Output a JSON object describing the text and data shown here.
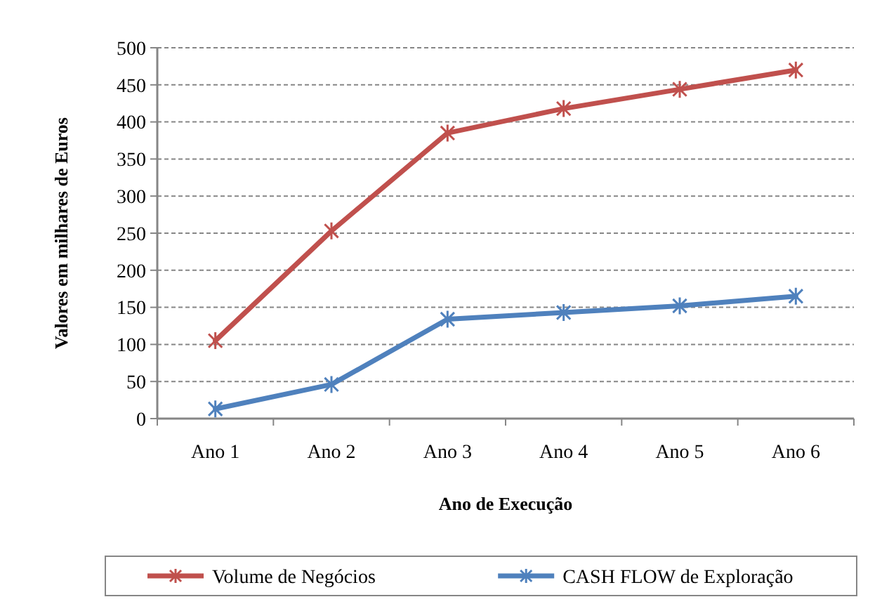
{
  "chart_data": {
    "type": "line",
    "xlabel": "Ano de Execução",
    "ylabel": "Valores em milhares de Euros",
    "categories": [
      "Ano 1",
      "Ano 2",
      "Ano 3",
      "Ano 4",
      "Ano 5",
      "Ano 6"
    ],
    "series": [
      {
        "name": "Volume de Negócios",
        "color": "#c0504d",
        "values": [
          105,
          253,
          385,
          418,
          444,
          470
        ]
      },
      {
        "name": "CASH FLOW de Exploração",
        "color": "#4f81bd",
        "values": [
          13,
          46,
          134,
          143,
          152,
          165
        ]
      }
    ],
    "ylim": [
      0,
      500
    ],
    "yticks": [
      0,
      50,
      100,
      150,
      200,
      250,
      300,
      350,
      400,
      450,
      500
    ],
    "grid": "y",
    "legend": "bottom",
    "marker": "cross",
    "line_style": "solid"
  }
}
